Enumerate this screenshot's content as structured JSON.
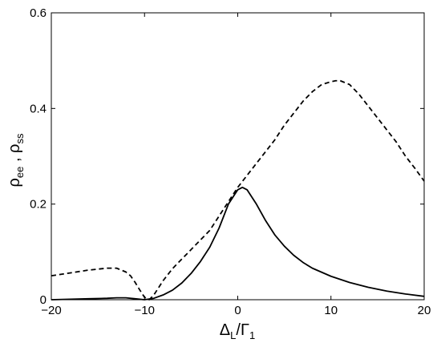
{
  "chart_data": {
    "type": "line",
    "title": "",
    "xlabel": {
      "main": "Δ",
      "sub": "L",
      "slash": "/Γ",
      "sub2": "1"
    },
    "ylabel": {
      "a": "ρ",
      "a_sub": "ee",
      "sep": " , ",
      "b": "ρ",
      "b_sub": "ss"
    },
    "xlim": [
      -20,
      20
    ],
    "ylim": [
      0,
      0.6
    ],
    "x_ticks": [
      -20,
      -10,
      0,
      10,
      20
    ],
    "x_tick_labels": [
      "−20",
      "−10",
      "0",
      "10",
      "20"
    ],
    "y_ticks": [
      0,
      0.2,
      0.4,
      0.6
    ],
    "y_tick_labels": [
      "0",
      "0.2",
      "0.4",
      "0.6"
    ],
    "grid": false,
    "legend": "none",
    "series": [
      {
        "style": "solid",
        "color": "#000000",
        "x": [
          -20,
          -18,
          -16,
          -14,
          -13,
          -12,
          -11,
          -10,
          -9,
          -8,
          -7,
          -6,
          -5,
          -4,
          -3,
          -2,
          -1,
          0,
          0.5,
          1,
          2,
          3,
          4,
          5,
          6,
          7,
          8,
          10,
          12,
          14,
          16,
          18,
          20
        ],
        "y": [
          0.0,
          0.001,
          0.002,
          0.003,
          0.004,
          0.004,
          0.002,
          0.0,
          0.003,
          0.01,
          0.02,
          0.035,
          0.055,
          0.08,
          0.11,
          0.15,
          0.2,
          0.23,
          0.235,
          0.23,
          0.2,
          0.165,
          0.135,
          0.112,
          0.093,
          0.078,
          0.066,
          0.049,
          0.036,
          0.026,
          0.018,
          0.012,
          0.007
        ]
      },
      {
        "style": "dashed",
        "color": "#000000",
        "x": [
          -20,
          -18,
          -16,
          -14,
          -13,
          -12,
          -11.5,
          -11,
          -10.5,
          -10,
          -9.5,
          -9,
          -8,
          -7,
          -6,
          -5,
          -4,
          -3,
          -2,
          -1,
          0,
          1,
          2,
          3,
          4,
          5,
          6,
          7,
          8,
          9,
          10,
          10.5,
          11,
          12,
          13,
          14,
          15,
          16,
          17,
          18,
          19,
          20
        ],
        "y": [
          0.05,
          0.056,
          0.062,
          0.066,
          0.066,
          0.058,
          0.05,
          0.036,
          0.02,
          0.005,
          0.0,
          0.01,
          0.04,
          0.065,
          0.085,
          0.105,
          0.125,
          0.145,
          0.175,
          0.205,
          0.235,
          0.26,
          0.285,
          0.31,
          0.335,
          0.365,
          0.39,
          0.415,
          0.435,
          0.45,
          0.456,
          0.458,
          0.458,
          0.45,
          0.43,
          0.405,
          0.38,
          0.355,
          0.33,
          0.3,
          0.275,
          0.248
        ]
      }
    ]
  }
}
